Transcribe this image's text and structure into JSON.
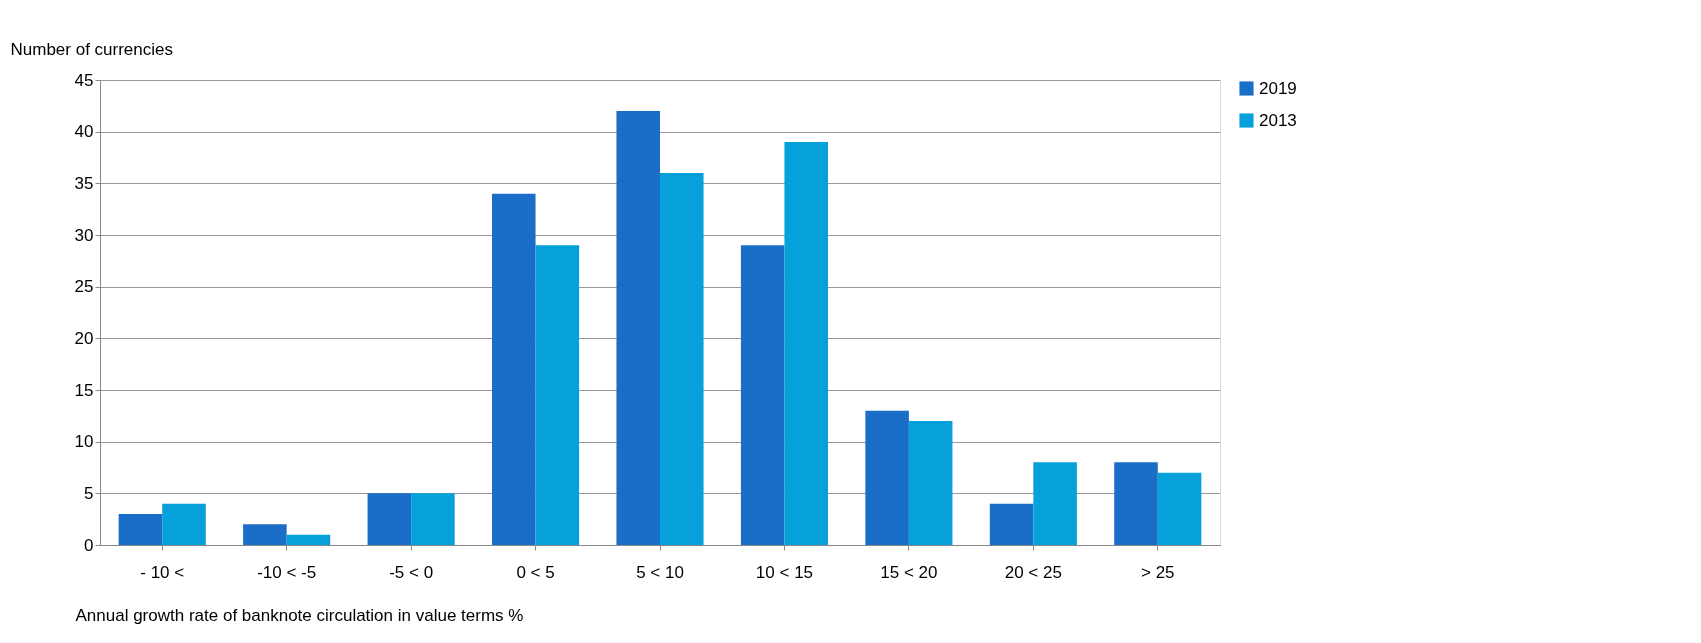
{
  "chart_data": {
    "type": "bar",
    "xlabel": "Annual growth rate of banknote circulation in value terms %",
    "ylabel": "Number of currencies",
    "categories": [
      "- 10 <",
      "-10 < -5",
      "-5 < 0",
      "0 < 5",
      "5 < 10",
      "10 <  15",
      "15 < 20",
      "20 < 25",
      "> 25"
    ],
    "series": [
      {
        "name": "2019",
        "color": "#1a6ec8",
        "values": [
          3,
          2,
          5,
          34,
          42,
          29,
          13,
          4,
          8
        ]
      },
      {
        "name": "2013",
        "color": "#06a0da",
        "values": [
          4,
          1,
          5,
          29,
          36,
          39,
          12,
          8,
          7
        ]
      }
    ],
    "ylim": [
      0,
      45
    ],
    "yticks": [
      0,
      5,
      10,
      15,
      20,
      25,
      30,
      35,
      40,
      45
    ],
    "grid": "y",
    "legend": "right"
  }
}
